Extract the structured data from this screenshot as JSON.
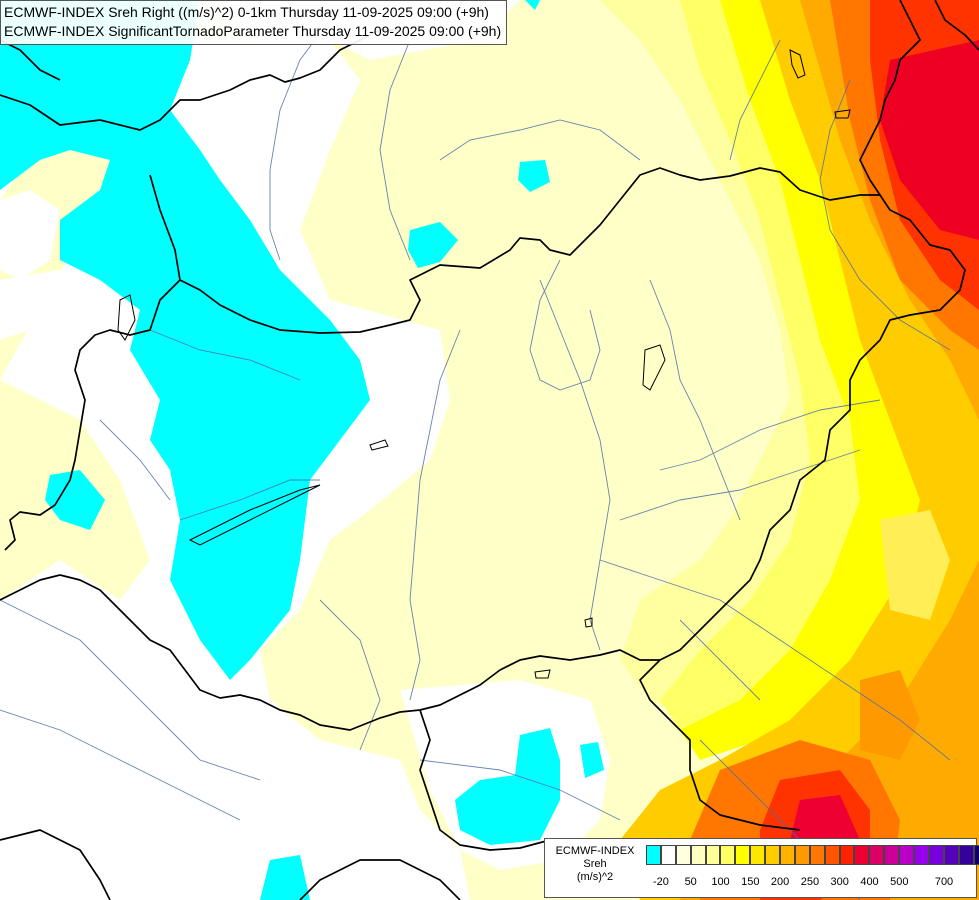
{
  "map": {
    "title_line1": "ECMWF-INDEX Sreh Right ((m/s)^2) 0-1km Thursday 11-09-2025 09:00 (+9h)",
    "title_line2": "ECMWF-INDEX SignificantTornadoParameter Thursday 11-09-2025 09:00 (+9h)",
    "colors": {
      "below_zero": "#00ffff",
      "zero": "#ffffff",
      "low": "#ffffc8",
      "low2": "#ffff99",
      "mid": "#ffff00",
      "mid2": "#ffdd00",
      "high": "#ffaa00",
      "high2": "#ff7700",
      "very_high": "#ff3300",
      "extreme": "#ee0022",
      "borders": "#000000",
      "rivers": "#4d6fa8"
    }
  },
  "legend": {
    "model": "ECMWF-INDEX",
    "parameter": "Sreh",
    "unit": "(m/s)^2",
    "swatches": [
      "#00ffff",
      "#ffffff",
      "#ffffdd",
      "#ffffc0",
      "#ffff99",
      "#ffff66",
      "#ffff00",
      "#ffe600",
      "#ffcc00",
      "#ffb300",
      "#ff9900",
      "#ff7700",
      "#ff5500",
      "#ff2200",
      "#ee0033",
      "#dd0066",
      "#cc0099",
      "#bb00cc",
      "#9900ee",
      "#7700dd",
      "#5500bb",
      "#330099",
      "#110066"
    ],
    "ticks": [
      "-20",
      "50",
      "100",
      "150",
      "200",
      "250",
      "300",
      "400",
      "500",
      "700"
    ]
  }
}
